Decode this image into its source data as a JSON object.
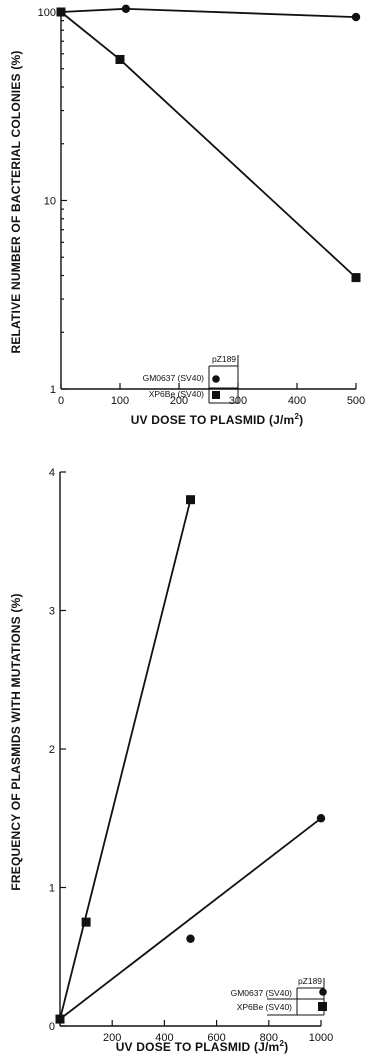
{
  "chart_data": [
    {
      "type": "line",
      "scale_y": "log",
      "xlabel": "UV DOSE TO PLASMID (J/m",
      "xlabel_sup": "2",
      "xlabel_tail": ")",
      "ylabel": "RELATIVE NUMBER OF BACTERIAL COLONIES (%)",
      "xlim": [
        0,
        500
      ],
      "ylim": [
        1,
        100
      ],
      "x_ticks": [
        0,
        100,
        200,
        300,
        400,
        500
      ],
      "y_ticks": [
        1,
        10,
        100
      ],
      "legend": {
        "header": "pZ189",
        "entries": [
          {
            "label": "GM0637 (SV40)",
            "marker": "circle"
          },
          {
            "label": "XP6Be (SV40)",
            "marker": "square"
          }
        ]
      },
      "series": [
        {
          "name": "GM0637 (SV40)",
          "marker": "circle",
          "x": [
            0,
            110,
            500
          ],
          "y": [
            100,
            104,
            94
          ]
        },
        {
          "name": "XP6Be (SV40)",
          "marker": "square",
          "x": [
            0,
            100,
            500
          ],
          "y": [
            100,
            56,
            3.9
          ]
        }
      ]
    },
    {
      "type": "line",
      "scale_y": "linear",
      "xlabel": "UV DOSE TO PLASMID (J/m",
      "xlabel_sup": "2",
      "xlabel_tail": ")",
      "ylabel": "FREQUENCY OF PLASMIDS WITH MUTATIONS (%)",
      "xlim": [
        0,
        1000
      ],
      "ylim": [
        0,
        4
      ],
      "x_ticks": [
        200,
        400,
        600,
        800,
        1000
      ],
      "y_ticks": [
        0,
        1,
        2,
        3,
        4
      ],
      "legend": {
        "header": "pZ189",
        "entries": [
          {
            "label": "GM0637 (SV40)",
            "marker": "circle"
          },
          {
            "label": "XP6Be (SV40)",
            "marker": "square"
          }
        ]
      },
      "series": [
        {
          "name": "GM0637 (SV40)",
          "marker": "circle",
          "x": [
            0,
            500,
            1000
          ],
          "y": [
            0.05,
            0.63,
            1.5
          ],
          "fit": [
            [
              0,
              0.05
            ],
            [
              1000,
              1.5
            ]
          ]
        },
        {
          "name": "XP6Be (SV40)",
          "marker": "square",
          "x": [
            0,
            100,
            500
          ],
          "y": [
            0.05,
            0.75,
            3.8
          ],
          "fit": [
            [
              0,
              0.05
            ],
            [
              500,
              3.8
            ]
          ]
        }
      ]
    }
  ]
}
